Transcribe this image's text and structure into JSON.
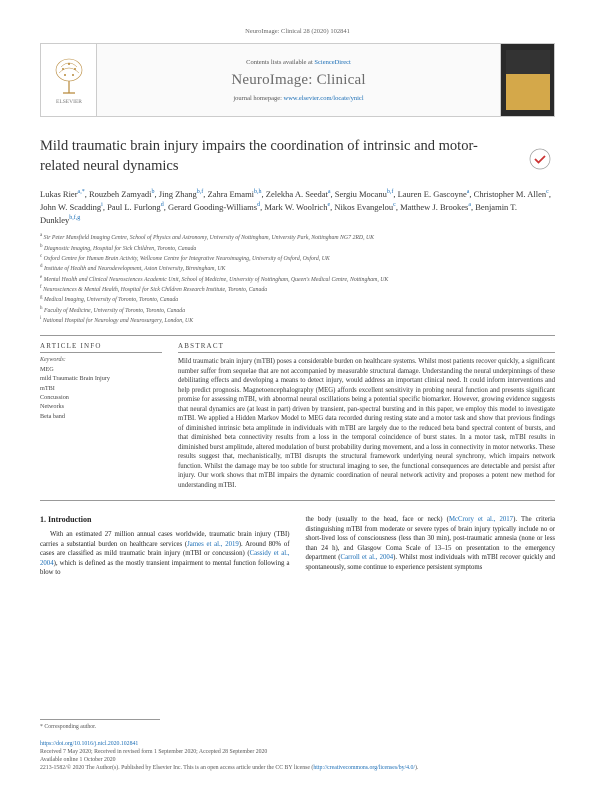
{
  "citation": "NeuroImage: Clinical 28 (2020) 102841",
  "masthead": {
    "contents_prefix": "Contents lists available at ",
    "contents_link": "ScienceDirect",
    "journal": "NeuroImage: Clinical",
    "homepage_prefix": "journal homepage: ",
    "homepage_link": "www.elsevier.com/locate/ynicl"
  },
  "title": "Mild traumatic brain injury impairs the coordination of intrinsic and motor-related neural dynamics",
  "authors_html": "Lukas Rier<sup>a,*</sup>, Rouzbeh Zamyadi<sup>b</sup>, Jing Zhang<sup>b,f</sup>, Zahra Emami<sup>b,h</sup>, Zelekha A. Seedat<sup>a</sup>, Sergiu Mocanu<sup>b,f</sup>, Lauren E. Gascoyne<sup>a</sup>, Christopher M. Allen<sup>c</sup>, John W. Scadding<sup>i</sup>, Paul L. Furlong<sup>d</sup>, Gerard Gooding-Williams<sup>d</sup>, Mark W. Woolrich<sup>e</sup>, Nikos Evangelou<sup>c</sup>, Matthew J. Brookes<sup>a</sup>, Benjamin T. Dunkley<sup>b,f,g</sup>",
  "affiliations": [
    "a Sir Peter Mansfield Imaging Centre, School of Physics and Astronomy, University of Nottingham, University Park, Nottingham NG7 2RD, UK",
    "b Diagnostic Imaging, Hospital for Sick Children, Toronto, Canada",
    "c Oxford Centre for Human Brain Activity, Wellcome Centre for Integrative Neuroimaging, University of Oxford, Oxford, UK",
    "d Institute of Health and Neurodevelopment, Aston University, Birmingham, UK",
    "e Mental Health and Clinical Neurosciences Academic Unit, School of Medicine, University of Nottingham, Queen's Medical Centre, Nottingham, UK",
    "f Neurosciences & Mental Health, Hospital for Sick Children Research Institute, Toronto, Canada",
    "g Medical Imaging, University of Toronto, Toronto, Canada",
    "h Faculty of Medicine, University of Toronto, Toronto, Canada",
    "i National Hospital for Neurology and Neurosurgery, London, UK"
  ],
  "article_info_head": "ARTICLE INFO",
  "abstract_head": "ABSTRACT",
  "keywords_label": "Keywords:",
  "keywords": [
    "MEG",
    "mild Traumatic Brain Injury",
    "mTBI",
    "Concussion",
    "Networks",
    "Beta band"
  ],
  "abstract": "Mild traumatic brain injury (mTBI) poses a considerable burden on healthcare systems. Whilst most patients recover quickly, a significant number suffer from sequelae that are not accompanied by measurable structural damage. Understanding the neural underpinnings of these debilitating effects and developing a means to detect injury, would address an important clinical need. It could inform interventions and help predict prognosis. Magnetoencephalography (MEG) affords excellent sensitivity in probing neural function and presents significant promise for assessing mTBI, with abnormal neural oscillations being a potential specific biomarker. However, growing evidence suggests that neural dynamics are (at least in part) driven by transient, pan-spectral bursting and in this paper, we employ this model to investigate mTBI. We applied a Hidden Markov Model to MEG data recorded during resting state and a motor task and show that previous findings of diminished intrinsic beta amplitude in individuals with mTBI are largely due to the reduced beta band spectral content of bursts, and that diminished beta connectivity results from a loss in the temporal coincidence of burst states. In a motor task, mTBI results in diminished burst amplitude, altered modulation of burst probability during movement, and a loss in connectivity in motor networks. These results suggest that, mechanistically, mTBI disrupts the structural framework underlying neural synchrony, which impairs network function. Whilst the damage may be too subtle for structural imaging to see, the functional consequences are detectable and persist after injury. Our work shows that mTBI impairs the dynamic coordination of neural network activity and proposes a potent new method for understanding mTBI.",
  "intro": {
    "head": "1. Introduction",
    "col1": "With an estimated 27 million annual cases worldwide, traumatic brain injury (TBI) carries a substantial burden on healthcare services (James et al., 2019). Around 80% of cases are classified as mild traumatic brain injury (mTBI or concussion) (Cassidy et al., 2004), which is defined as the mostly transient impairment to mental function following a blow to",
    "col2": "the body (usually to the head, face or neck) (McCrory et al., 2017). The criteria distinguishing mTBI from moderate or severe types of brain injury typically include no or short-lived loss of consciousness (less than 30 min), post-traumatic amnesia (none or less than 24 h), and Glasgow Coma Scale of 13–15 on presentation to the emergency department (Carroll et al., 2004). Whilst most individuals with mTBI recover quickly and spontaneously, some continue to experience persistent symptoms"
  },
  "footer": {
    "corr": "* Corresponding author.",
    "doi": "https://doi.org/10.1016/j.nicl.2020.102841",
    "history": "Received 7 May 2020; Received in revised form 1 September 2020; Accepted 28 September 2020",
    "available": "Available online 1 October 2020",
    "copyright_pre": "2213-1582/© 2020 The Author(s). Published by Elsevier Inc. This is an open access article under the CC BY license (",
    "cc_link": "http://creativecommons.org/licenses/by/4.0/",
    "copyright_post": ")."
  },
  "colors": {
    "link": "#1a6db5",
    "text": "#333333",
    "muted": "#666666"
  }
}
